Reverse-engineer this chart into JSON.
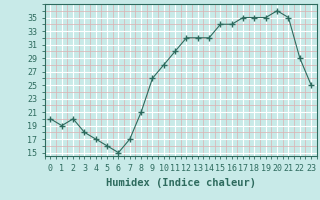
{
  "xlabel": "Humidex (Indice chaleur)",
  "x_values": [
    0,
    1,
    2,
    3,
    4,
    5,
    6,
    7,
    8,
    9,
    10,
    11,
    12,
    13,
    14,
    15,
    16,
    17,
    18,
    19,
    20,
    21,
    22,
    23
  ],
  "y_values": [
    20,
    19,
    20,
    18,
    17,
    16,
    15,
    17,
    21,
    26,
    28,
    30,
    32,
    32,
    32,
    34,
    34,
    35,
    35,
    35,
    36,
    35,
    29,
    25
  ],
  "ylim": [
    14.5,
    37
  ],
  "yticks": [
    15,
    17,
    19,
    21,
    23,
    25,
    27,
    29,
    31,
    33,
    35
  ],
  "line_color": "#2e6b5e",
  "marker": "+",
  "marker_size": 4,
  "bg_color": "#c8eae8",
  "grid_color_major": "#ffffff",
  "grid_color_minor": "#dbb0b0",
  "label_color": "#2e6b5e",
  "tick_label_fontsize": 6,
  "xlabel_fontsize": 7.5
}
